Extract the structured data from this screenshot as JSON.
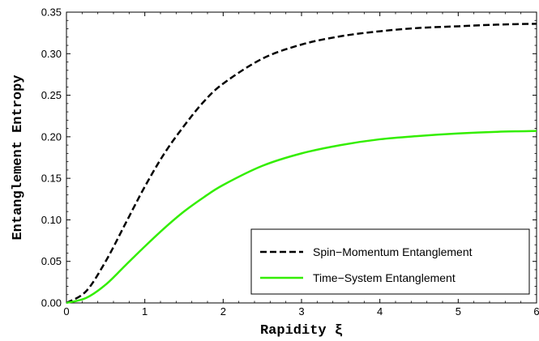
{
  "chart_data": {
    "type": "line",
    "title": "",
    "xlabel": "Rapidity ξ",
    "ylabel": "Entanglement Entropy",
    "xlim": [
      0,
      6
    ],
    "ylim": [
      0,
      0.35
    ],
    "x_ticks": [
      "0",
      "1",
      "2",
      "3",
      "4",
      "5",
      "6"
    ],
    "y_ticks": [
      "0.00",
      "0.05",
      "0.10",
      "0.15",
      "0.20",
      "0.25",
      "0.30",
      "0.35"
    ],
    "grid": false,
    "legend_position": "bottom-right",
    "series": [
      {
        "name": "Spin−Momentum Entanglement",
        "color": "#000000",
        "dash": "dashed",
        "x": [
          0,
          0.25,
          0.5,
          0.75,
          1,
          1.25,
          1.5,
          1.75,
          2,
          2.5,
          3,
          3.5,
          4,
          4.5,
          5,
          5.5,
          6
        ],
        "y": [
          0,
          0.014,
          0.05,
          0.095,
          0.14,
          0.18,
          0.213,
          0.242,
          0.264,
          0.294,
          0.311,
          0.321,
          0.327,
          0.331,
          0.333,
          0.335,
          0.336
        ]
      },
      {
        "name": "Time−System Entanglement",
        "color": "#33ee00",
        "dash": "solid",
        "x": [
          0,
          0.25,
          0.5,
          0.75,
          1,
          1.25,
          1.5,
          1.75,
          2,
          2.5,
          3,
          3.5,
          4,
          4.5,
          5,
          5.5,
          6
        ],
        "y": [
          0,
          0.006,
          0.022,
          0.045,
          0.068,
          0.09,
          0.11,
          0.127,
          0.142,
          0.165,
          0.18,
          0.19,
          0.197,
          0.201,
          0.204,
          0.206,
          0.207
        ]
      }
    ]
  }
}
